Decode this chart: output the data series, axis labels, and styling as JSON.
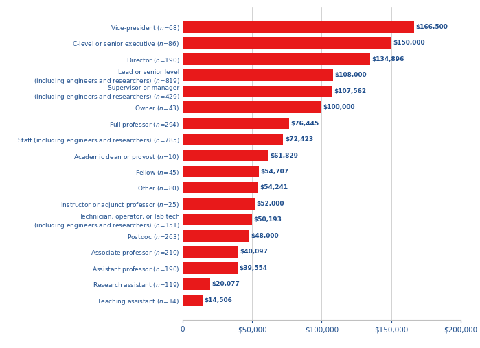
{
  "labels_display": [
    "Vice-president ($n$=68)",
    "C-level or senior executive ($n$=86)",
    "Director ($n$=190)",
    "Lead or senior level\n(including engineers and researchers) ($n$=819)",
    "Supervisor or manager\n(including engineers and researchers) ($n$=429)",
    "Owner ($n$=43)",
    "Full professor ($n$=294)",
    "Staff (including engineers and researchers) ($n$=785)",
    "Academic dean or provost ($n$=10)",
    "Fellow ($n$=45)",
    "Other ($n$=80)",
    "Instructor or adjunct professor ($n$=25)",
    "Technician, operator, or lab tech\n(including engineers and researchers) ($n$=151)",
    "Postdoc ($n$=263)",
    "Associate professor ($n$=210)",
    "Assistant professor ($n$=190)",
    "Research assistant ($n$=119)",
    "Teaching assistant ($n$=14)"
  ],
  "values": [
    166500,
    150000,
    134896,
    108000,
    107562,
    100000,
    76445,
    72423,
    61829,
    54707,
    54241,
    52000,
    50193,
    48000,
    40097,
    39554,
    20077,
    14506
  ],
  "value_labels": [
    "$166,500",
    "$150,000",
    "$134,896",
    "$108,000",
    "$107,562",
    "$100,000",
    "$76,445",
    "$72,423",
    "$61,829",
    "$54,707",
    "$54,241",
    "$52,000",
    "$50,193",
    "$48,000",
    "$40,097",
    "$39,554",
    "$20,077",
    "$14,506"
  ],
  "bar_color": "#E8191A",
  "text_color": "#1F4E8C",
  "xlim": [
    0,
    200000
  ],
  "xticks": [
    0,
    50000,
    100000,
    150000,
    200000
  ],
  "xtick_labels": [
    "0",
    "$50,000",
    "$100,000",
    "$150,000",
    "$200,000"
  ],
  "bar_height": 0.72,
  "figsize": [
    6.99,
    5.08
  ],
  "dpi": 100,
  "label_fontsize": 6.5,
  "value_fontsize": 6.5
}
